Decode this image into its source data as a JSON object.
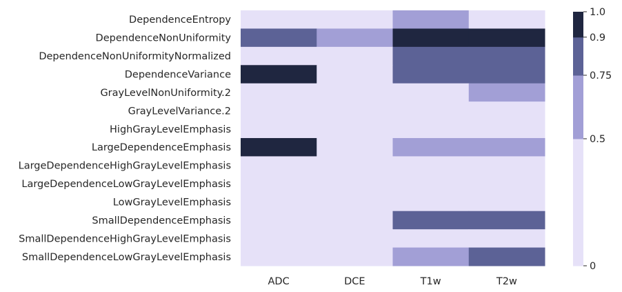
{
  "chart_data": {
    "type": "heatmap",
    "title": "",
    "xlabel": "",
    "ylabel": "",
    "x_categories": [
      "ADC",
      "DCE",
      "T1w",
      "T2w"
    ],
    "y_categories": [
      "DependenceEntropy",
      "DependenceNonUniformity",
      "DependenceNonUniformityNormalized",
      "DependenceVariance",
      "GrayLevelNonUniformity.2",
      "GrayLevelVariance.2",
      "HighGrayLevelEmphasis",
      "LargeDependenceEmphasis",
      "LargeDependenceHighGrayLevelEmphasis",
      "LargeDependenceLowGrayLevelEmphasis",
      "LowGrayLevelEmphasis",
      "SmallDependenceEmphasis",
      "SmallDependenceHighGrayLevelEmphasis",
      "SmallDependenceLowGrayLevelEmphasis"
    ],
    "values": [
      [
        0.25,
        0.25,
        0.6,
        0.25
      ],
      [
        0.8,
        0.6,
        0.95,
        0.95
      ],
      [
        0.25,
        0.25,
        0.8,
        0.8
      ],
      [
        0.95,
        0.25,
        0.8,
        0.8
      ],
      [
        0.25,
        0.25,
        0.25,
        0.6
      ],
      [
        0.25,
        0.25,
        0.25,
        0.25
      ],
      [
        0.25,
        0.25,
        0.25,
        0.25
      ],
      [
        0.95,
        0.25,
        0.6,
        0.6
      ],
      [
        0.25,
        0.25,
        0.25,
        0.25
      ],
      [
        0.25,
        0.25,
        0.25,
        0.25
      ],
      [
        0.25,
        0.25,
        0.25,
        0.25
      ],
      [
        0.25,
        0.25,
        0.8,
        0.8
      ],
      [
        0.25,
        0.25,
        0.25,
        0.25
      ],
      [
        0.25,
        0.25,
        0.6,
        0.8
      ]
    ],
    "colorbar": {
      "boundaries": [
        0,
        0.5,
        0.75,
        0.9,
        1.0
      ],
      "colors": [
        "#e6e1f8",
        "#a29fd6",
        "#5c6296",
        "#1f2640"
      ],
      "tick_labels": [
        "0",
        "0.5",
        "0.75",
        "0.9",
        "1.0"
      ]
    },
    "grid": false
  }
}
